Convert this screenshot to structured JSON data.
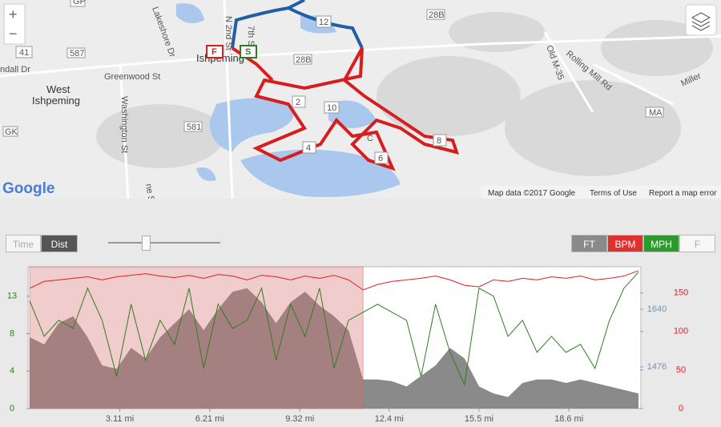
{
  "map": {
    "labels": [
      "West",
      "Ishpeming",
      "Ishpeming",
      "Greenwood St",
      "Washington St",
      "Lakeshore Dr",
      "N 2nd St",
      "7th St",
      "Old M-35",
      "Rolling Mill Rd",
      "Miller",
      "ndall Dr",
      "ne St"
    ],
    "shields": [
      "GP",
      "587",
      "41",
      "581",
      "GK",
      "28B",
      "28B",
      "12",
      "MA"
    ],
    "markers": [
      "F",
      "S",
      "2",
      "10",
      "4",
      "6",
      "8",
      "C"
    ],
    "zoom_in": "+",
    "zoom_out": "−",
    "logo": "Google",
    "attribution": "Map data ©2017 Google",
    "terms": "Terms of Use",
    "report": "Report a map error"
  },
  "controls": {
    "time": "Time",
    "dist": "Dist",
    "ft": "FT",
    "bpm": "BPM",
    "mph": "MPH",
    "f": "F"
  },
  "chart_data": {
    "type": "line",
    "x": [
      0,
      0.5,
      1,
      1.5,
      2,
      2.5,
      3,
      3.5,
      4,
      4.5,
      5,
      5.5,
      6,
      6.5,
      7,
      7.5,
      8,
      8.5,
      9,
      9.5,
      10,
      10.5,
      11,
      11.5,
      12,
      12.5,
      13,
      13.5,
      14,
      14.5,
      15,
      15.5,
      16,
      16.5,
      17,
      17.5,
      18,
      18.5,
      19,
      19.5,
      20,
      20.5,
      21
    ],
    "xlim": [
      0,
      21
    ],
    "xticks": [
      {
        "value": 3.11,
        "label": "3.11 mi"
      },
      {
        "value": 6.21,
        "label": "6.21 mi"
      },
      {
        "value": 9.32,
        "label": "9.32 mi"
      },
      {
        "value": 12.4,
        "label": "12.4 mi"
      },
      {
        "value": 15.5,
        "label": "15.5 mi"
      },
      {
        "value": 18.6,
        "label": "18.6 mi"
      }
    ],
    "ylim": [
      0,
      15.9
    ],
    "yticks": [
      0,
      {
        "value": 4.2,
        "label": "4"
      },
      {
        "value": 8.4,
        "label": "8"
      },
      {
        "value": 12.6,
        "label": "13"
      }
    ],
    "y2lim": [
      0,
      184
    ],
    "y2ticks": [
      0,
      50,
      100,
      150
    ],
    "y3lim": [
      1357,
      1761
    ],
    "y3ticks": [
      1476,
      1640
    ],
    "selection": [
      0,
      11.5
    ],
    "series": [
      {
        "name": "FT",
        "color": "#8a8a8a",
        "axis": "y3",
        "values": [
          1560,
          1540,
          1600,
          1620,
          1560,
          1480,
          1470,
          1530,
          1500,
          1560,
          1600,
          1640,
          1580,
          1640,
          1690,
          1700,
          1660,
          1600,
          1660,
          1690,
          1650,
          1620,
          1580,
          1440,
          1440,
          1435,
          1420,
          1450,
          1480,
          1530,
          1500,
          1420,
          1400,
          1390,
          1430,
          1440,
          1440,
          1430,
          1440,
          1430,
          1420,
          1410,
          1400
        ]
      },
      {
        "name": "BPM",
        "color": "#e02020",
        "axis": "y2",
        "values": [
          156,
          165,
          167,
          169,
          171,
          167,
          171,
          173,
          175,
          172,
          170,
          173,
          169,
          174,
          172,
          167,
          173,
          171,
          167,
          172,
          169,
          173,
          167,
          154,
          161,
          165,
          167,
          169,
          172,
          167,
          160,
          158,
          167,
          165,
          169,
          167,
          171,
          169,
          172,
          167,
          169,
          172,
          179
        ]
      },
      {
        "name": "MPH",
        "color": "#2e7d1e",
        "axis": "y",
        "values": [
          12.1,
          8.1,
          9.9,
          9,
          13.5,
          9.9,
          3.6,
          11.7,
          5.4,
          9.9,
          7.2,
          13.5,
          4.5,
          11.7,
          9,
          9.9,
          13.5,
          5.4,
          11.7,
          8.1,
          13.5,
          4.5,
          9.9,
          10.8,
          11.7,
          10.8,
          9.9,
          3.6,
          11.7,
          6.3,
          2.7,
          13.5,
          12.6,
          8.1,
          9.9,
          6.3,
          8.1,
          6.3,
          7.2,
          4.5,
          9.9,
          13.5,
          15.3
        ]
      }
    ]
  }
}
